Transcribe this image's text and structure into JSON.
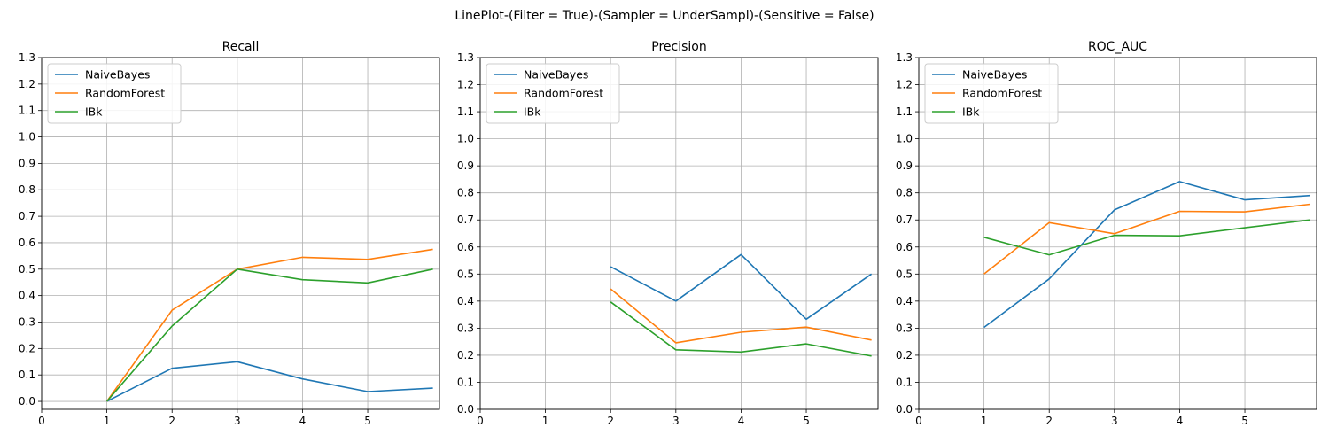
{
  "suptitle": "LinePlot-(Filter = True)-(Sampler = UnderSampl)-(Sensitive = False)",
  "colors": {
    "NaiveBayes": "#1f77b4",
    "RandomForest": "#ff7f0e",
    "IBk": "#2ca02c",
    "grid": "#b0b0b0"
  },
  "chart_data": [
    {
      "type": "line",
      "title": "Recall",
      "xticks": [
        0,
        1,
        2,
        3,
        4,
        5
      ],
      "yticks": [
        0.0,
        0.1,
        0.2,
        0.3,
        0.4,
        0.5,
        0.6,
        0.7,
        0.8,
        0.9,
        1.0,
        1.1,
        1.2,
        1.3
      ],
      "xlim": [
        0,
        6.1
      ],
      "ylim": [
        -0.03,
        1.3
      ],
      "grid": true,
      "legend": "upper-left",
      "series": [
        {
          "name": "NaiveBayes",
          "x": [
            1,
            2,
            3,
            4,
            5,
            6
          ],
          "y": [
            0.0,
            0.125,
            0.15,
            0.085,
            0.037,
            0.05
          ]
        },
        {
          "name": "RandomForest",
          "x": [
            1,
            2,
            3,
            4,
            5,
            6
          ],
          "y": [
            0.0,
            0.345,
            0.5,
            0.545,
            0.537,
            0.575
          ]
        },
        {
          "name": "IBk",
          "x": [
            1,
            2,
            3,
            4,
            5,
            6
          ],
          "y": [
            0.0,
            0.285,
            0.5,
            0.46,
            0.448,
            0.5
          ]
        }
      ]
    },
    {
      "type": "line",
      "title": "Precision",
      "xticks": [
        0,
        1,
        2,
        3,
        4,
        5
      ],
      "yticks": [
        0.0,
        0.1,
        0.2,
        0.3,
        0.4,
        0.5,
        0.6,
        0.7,
        0.8,
        0.9,
        1.0,
        1.1,
        1.2,
        1.3
      ],
      "xlim": [
        0,
        6.1
      ],
      "ylim": [
        0,
        1.3
      ],
      "grid": true,
      "legend": "upper-left",
      "series": [
        {
          "name": "NaiveBayes",
          "x": [
            2,
            3,
            4,
            5,
            6
          ],
          "y": [
            0.527,
            0.4,
            0.572,
            0.333,
            0.5
          ]
        },
        {
          "name": "RandomForest",
          "x": [
            2,
            3,
            4,
            5,
            6
          ],
          "y": [
            0.445,
            0.246,
            0.285,
            0.304,
            0.256
          ]
        },
        {
          "name": "IBk",
          "x": [
            2,
            3,
            4,
            5,
            6
          ],
          "y": [
            0.397,
            0.22,
            0.212,
            0.242,
            0.197
          ]
        }
      ]
    },
    {
      "type": "line",
      "title": "ROC_AUC",
      "xticks": [
        0,
        1,
        2,
        3,
        4,
        5
      ],
      "yticks": [
        0.0,
        0.1,
        0.2,
        0.3,
        0.4,
        0.5,
        0.6,
        0.7,
        0.8,
        0.9,
        1.0,
        1.1,
        1.2,
        1.3
      ],
      "xlim": [
        0,
        6.1
      ],
      "ylim": [
        0,
        1.3
      ],
      "grid": true,
      "legend": "upper-left",
      "series": [
        {
          "name": "NaiveBayes",
          "x": [
            1,
            2,
            3,
            4,
            5,
            6
          ],
          "y": [
            0.303,
            0.482,
            0.737,
            0.842,
            0.774,
            0.79
          ]
        },
        {
          "name": "RandomForest",
          "x": [
            1,
            2,
            3,
            4,
            5,
            6
          ],
          "y": [
            0.5,
            0.69,
            0.649,
            0.732,
            0.73,
            0.758
          ]
        },
        {
          "name": "IBk",
          "x": [
            1,
            2,
            3,
            4,
            5,
            6
          ],
          "y": [
            0.636,
            0.571,
            0.643,
            0.641,
            0.671,
            0.7
          ]
        }
      ]
    }
  ]
}
